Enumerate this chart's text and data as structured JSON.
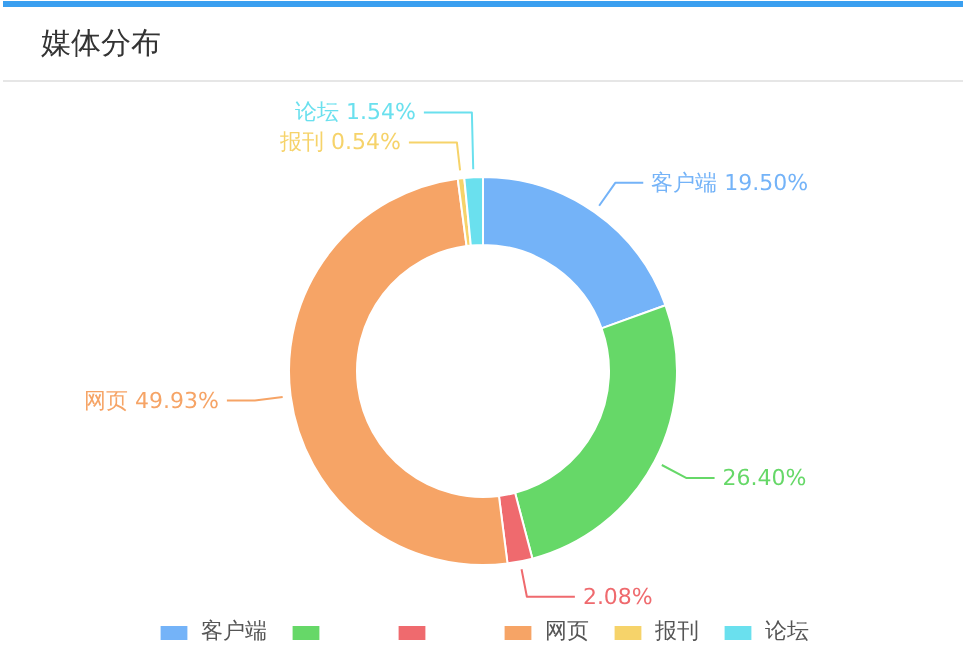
{
  "chart_data": {
    "type": "donut",
    "title": "媒体分布",
    "categories": [
      "客户端",
      null,
      null,
      "网页",
      "报刊",
      "论坛"
    ],
    "values": [
      19.5,
      26.4,
      2.08,
      49.93,
      0.54,
      1.54
    ],
    "value_labels": [
      "19.50%",
      "26.40%",
      "2.08%",
      "49.93%",
      "0.54%",
      "1.54%"
    ],
    "colors": [
      "#74b3f8",
      "#66d868",
      "#ef6a6e",
      "#f6a466",
      "#f6d36a",
      "#6ae0ee"
    ],
    "legend": "bottom"
  }
}
